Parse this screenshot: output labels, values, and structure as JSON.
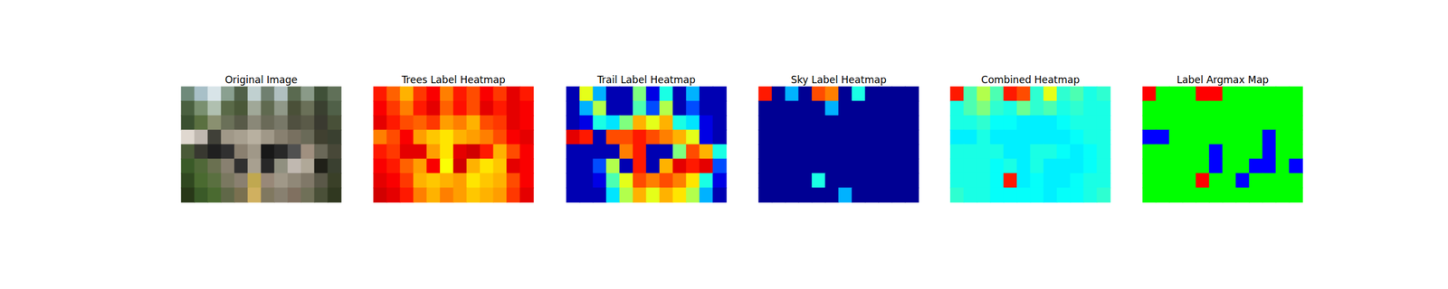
{
  "chart_data": [
    {
      "type": "image",
      "title": "Original Image",
      "tick_labels": false,
      "pixels": [
        [
          "#6f8a7a",
          "#a8c0c8",
          "#d8e4e8",
          "#8aa090",
          "#506048",
          "#c0d0d0",
          "#708070",
          "#b0c0c0",
          "#5a6a50",
          "#8a9a88",
          "#405038",
          "#607058"
        ],
        [
          "#4a6040",
          "#7a9070",
          "#b0c0b0",
          "#5a6a48",
          "#4a5838",
          "#a0a898",
          "#606a50",
          "#909888",
          "#4a5038",
          "#6a7058",
          "#3a4030",
          "#506048"
        ],
        [
          "#3a5030",
          "#5a7040",
          "#8a9070",
          "#6a7058",
          "#585a48",
          "#8a8878",
          "#6a6a58",
          "#787868",
          "#505040",
          "#5a5a48",
          "#3a3a30",
          "#485038"
        ],
        [
          "#e0d8d0",
          "#c0b8b0",
          "#404038",
          "#a09888",
          "#a8a090",
          "#b8b0a0",
          "#a09888",
          "#888070",
          "#787060",
          "#6a6a58",
          "#404030",
          "#3a4030"
        ],
        [
          "#4a5a38",
          "#383830",
          "#202020",
          "#303030",
          "#8a8070",
          "#a09888",
          "#181818",
          "#282828",
          "#505050",
          "#a09080",
          "#6a6858",
          "#484838"
        ],
        [
          "#3a5a28",
          "#506838",
          "#6a7050",
          "#888070",
          "#303030",
          "#a8a090",
          "#282828",
          "#909080",
          "#c0b8b0",
          "#b0a898",
          "#202018",
          "#3a4030"
        ],
        [
          "#304820",
          "#4a6a30",
          "#5a7040",
          "#7a7860",
          "#8a8070",
          "#c0a850",
          "#988878",
          "#a09888",
          "#908878",
          "#807868",
          "#5a5848",
          "#3a4028"
        ],
        [
          "#283818",
          "#3a5a28",
          "#4a6a30",
          "#606848",
          "#7a7050",
          "#d0b060",
          "#807860",
          "#888070",
          "#807060",
          "#707058",
          "#4a5038",
          "#303820"
        ]
      ]
    },
    {
      "type": "heatmap",
      "title": "Trees Label Heatmap",
      "tick_labels": false,
      "color_range": [
        0,
        1
      ],
      "cells": [
        [
          0.85,
          0.78,
          0.7,
          0.82,
          0.88,
          0.75,
          0.85,
          0.8,
          0.88,
          0.82,
          0.9,
          0.85
        ],
        [
          0.88,
          0.82,
          0.75,
          0.85,
          0.9,
          0.78,
          0.86,
          0.8,
          0.9,
          0.85,
          0.9,
          0.88
        ],
        [
          0.9,
          0.85,
          0.8,
          0.78,
          0.82,
          0.72,
          0.75,
          0.7,
          0.8,
          0.82,
          0.9,
          0.88
        ],
        [
          0.75,
          0.8,
          0.88,
          0.72,
          0.68,
          0.65,
          0.7,
          0.72,
          0.75,
          0.8,
          0.88,
          0.9
        ],
        [
          0.85,
          0.82,
          0.9,
          0.9,
          0.72,
          0.65,
          0.9,
          0.92,
          0.85,
          0.7,
          0.8,
          0.88
        ],
        [
          0.88,
          0.85,
          0.78,
          0.72,
          0.88,
          0.62,
          0.92,
          0.7,
          0.65,
          0.68,
          0.9,
          0.88
        ],
        [
          0.9,
          0.88,
          0.82,
          0.7,
          0.68,
          0.7,
          0.72,
          0.65,
          0.68,
          0.7,
          0.8,
          0.88
        ],
        [
          0.92,
          0.9,
          0.85,
          0.75,
          0.7,
          0.75,
          0.72,
          0.68,
          0.7,
          0.72,
          0.82,
          0.9
        ]
      ]
    },
    {
      "type": "heatmap",
      "title": "Trail Label Heatmap",
      "tick_labels": false,
      "color_range": [
        0,
        1
      ],
      "cells": [
        [
          0.05,
          0.6,
          0.3,
          0.05,
          0.05,
          0.5,
          0.1,
          0.4,
          0.05,
          0.3,
          0.05,
          0.05
        ],
        [
          0.05,
          0.3,
          0.55,
          0.05,
          0.05,
          0.45,
          0.2,
          0.55,
          0.05,
          0.2,
          0.05,
          0.05
        ],
        [
          0.05,
          0.1,
          0.4,
          0.35,
          0.5,
          0.7,
          0.6,
          0.7,
          0.4,
          0.35,
          0.1,
          0.05
        ],
        [
          0.9,
          0.85,
          0.05,
          0.8,
          0.8,
          0.85,
          0.8,
          0.75,
          0.7,
          0.6,
          0.1,
          0.05
        ],
        [
          0.05,
          0.05,
          0.05,
          0.05,
          0.75,
          0.85,
          0.05,
          0.05,
          0.5,
          0.8,
          0.7,
          0.4
        ],
        [
          0.05,
          0.05,
          0.2,
          0.55,
          0.05,
          0.85,
          0.05,
          0.7,
          0.9,
          0.85,
          0.9,
          0.2
        ],
        [
          0.05,
          0.05,
          0.1,
          0.45,
          0.6,
          0.8,
          0.75,
          0.8,
          0.75,
          0.65,
          0.4,
          0.1
        ],
        [
          0.05,
          0.05,
          0.05,
          0.35,
          0.55,
          0.7,
          0.6,
          0.7,
          0.65,
          0.55,
          0.3,
          0.05
        ]
      ]
    },
    {
      "type": "heatmap",
      "title": "Sky Label Heatmap",
      "tick_labels": false,
      "color_range": [
        0,
        1
      ],
      "cells": [
        [
          0.85,
          0.02,
          0.3,
          0.02,
          0.8,
          0.75,
          0.02,
          0.4,
          0.02,
          0.02,
          0.02,
          0.02
        ],
        [
          0.02,
          0.02,
          0.02,
          0.02,
          0.02,
          0.3,
          0.02,
          0.02,
          0.02,
          0.02,
          0.02,
          0.02
        ],
        [
          0.02,
          0.02,
          0.02,
          0.02,
          0.02,
          0.02,
          0.02,
          0.02,
          0.02,
          0.02,
          0.02,
          0.02
        ],
        [
          0.02,
          0.02,
          0.02,
          0.02,
          0.02,
          0.02,
          0.02,
          0.02,
          0.02,
          0.02,
          0.02,
          0.02
        ],
        [
          0.02,
          0.02,
          0.02,
          0.02,
          0.02,
          0.02,
          0.02,
          0.02,
          0.02,
          0.02,
          0.02,
          0.02
        ],
        [
          0.02,
          0.02,
          0.02,
          0.02,
          0.02,
          0.02,
          0.02,
          0.02,
          0.02,
          0.02,
          0.02,
          0.02
        ],
        [
          0.02,
          0.02,
          0.02,
          0.02,
          0.4,
          0.02,
          0.02,
          0.02,
          0.02,
          0.02,
          0.02,
          0.02
        ],
        [
          0.02,
          0.02,
          0.02,
          0.02,
          0.02,
          0.02,
          0.3,
          0.02,
          0.02,
          0.02,
          0.02,
          0.02
        ]
      ]
    },
    {
      "type": "heatmap",
      "title": "Combined Heatmap",
      "tick_labels": false,
      "color_range": [
        0,
        1
      ],
      "cells": [
        [
          0.85,
          0.45,
          0.55,
          0.45,
          0.85,
          0.8,
          0.42,
          0.6,
          0.42,
          0.45,
          0.4,
          0.42
        ],
        [
          0.4,
          0.45,
          0.5,
          0.42,
          0.4,
          0.48,
          0.42,
          0.45,
          0.4,
          0.42,
          0.4,
          0.4
        ],
        [
          0.4,
          0.4,
          0.42,
          0.38,
          0.38,
          0.36,
          0.36,
          0.36,
          0.38,
          0.4,
          0.4,
          0.4
        ],
        [
          0.36,
          0.36,
          0.4,
          0.36,
          0.36,
          0.36,
          0.36,
          0.36,
          0.36,
          0.38,
          0.4,
          0.4
        ],
        [
          0.4,
          0.4,
          0.4,
          0.4,
          0.36,
          0.36,
          0.4,
          0.4,
          0.38,
          0.36,
          0.38,
          0.4
        ],
        [
          0.4,
          0.4,
          0.4,
          0.38,
          0.4,
          0.36,
          0.4,
          0.36,
          0.36,
          0.36,
          0.38,
          0.4
        ],
        [
          0.4,
          0.4,
          0.4,
          0.38,
          0.85,
          0.36,
          0.38,
          0.36,
          0.36,
          0.38,
          0.4,
          0.4
        ],
        [
          0.42,
          0.4,
          0.4,
          0.38,
          0.38,
          0.38,
          0.38,
          0.36,
          0.38,
          0.38,
          0.4,
          0.42
        ]
      ]
    },
    {
      "type": "label_map",
      "title": "Label Argmax Map",
      "tick_labels": false,
      "colors": [
        "#00ff00",
        "#0000ff",
        "#ff0000"
      ],
      "cells": [
        [
          2,
          0,
          0,
          0,
          2,
          2,
          0,
          0,
          0,
          0,
          0,
          0
        ],
        [
          0,
          0,
          0,
          0,
          0,
          0,
          0,
          0,
          0,
          0,
          0,
          0
        ],
        [
          0,
          0,
          0,
          0,
          0,
          0,
          0,
          0,
          0,
          0,
          0,
          0
        ],
        [
          1,
          1,
          0,
          0,
          0,
          0,
          0,
          0,
          0,
          1,
          0,
          0
        ],
        [
          0,
          0,
          0,
          0,
          0,
          1,
          0,
          0,
          0,
          1,
          0,
          0
        ],
        [
          0,
          0,
          0,
          0,
          0,
          1,
          0,
          0,
          1,
          1,
          0,
          1
        ],
        [
          0,
          0,
          0,
          0,
          2,
          0,
          0,
          1,
          0,
          0,
          0,
          0
        ],
        [
          0,
          0,
          0,
          0,
          0,
          0,
          0,
          0,
          0,
          0,
          0,
          0
        ]
      ]
    }
  ]
}
